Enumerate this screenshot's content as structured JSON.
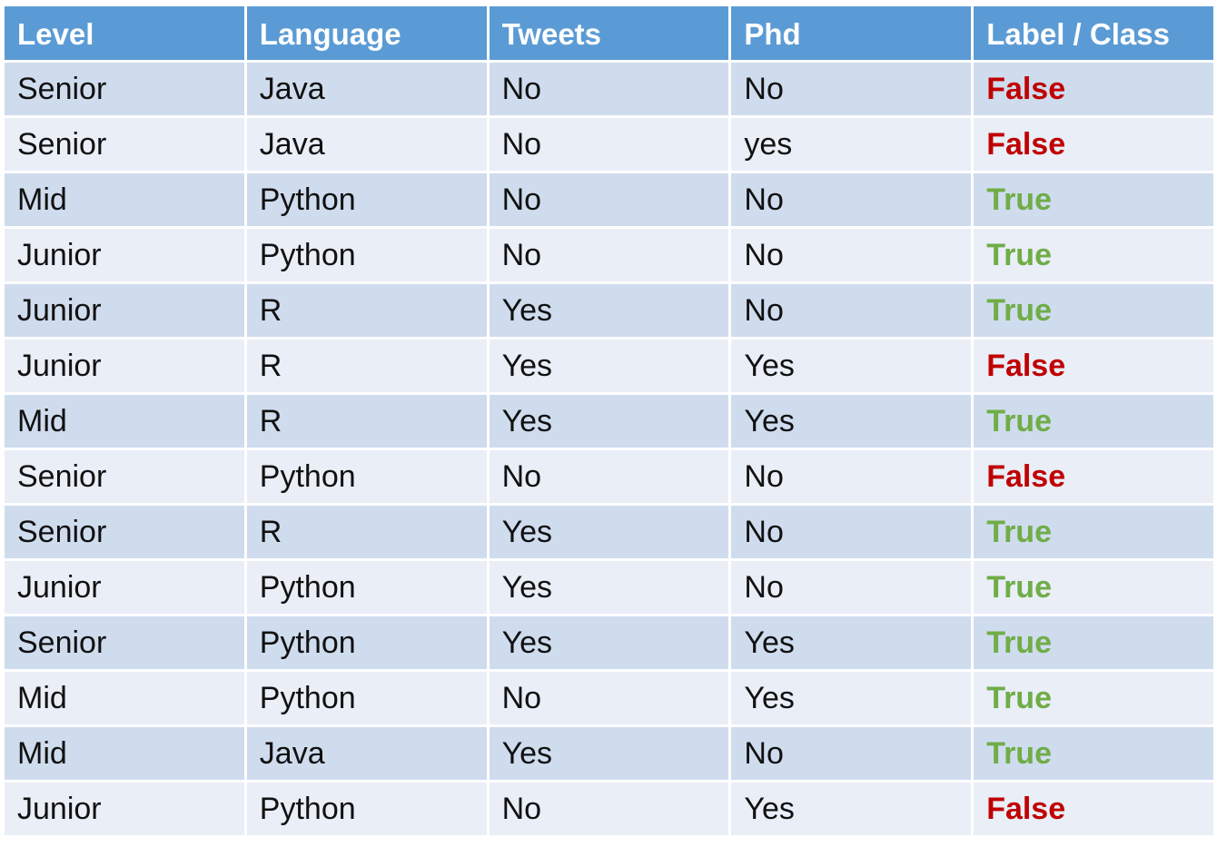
{
  "table": {
    "headers": [
      "Level",
      "Language",
      "Tweets",
      "Phd",
      "Label / Class"
    ],
    "rows": [
      [
        "Senior",
        "Java",
        "No",
        "No",
        "False"
      ],
      [
        "Senior",
        "Java",
        "No",
        "yes",
        "False"
      ],
      [
        "Mid",
        "Python",
        "No",
        "No",
        "True"
      ],
      [
        "Junior",
        "Python",
        "No",
        "No",
        "True"
      ],
      [
        "Junior",
        "R",
        "Yes",
        "No",
        "True"
      ],
      [
        "Junior",
        "R",
        "Yes",
        "Yes",
        "False"
      ],
      [
        "Mid",
        "R",
        "Yes",
        "Yes",
        "True"
      ],
      [
        "Senior",
        "Python",
        "No",
        "No",
        "False"
      ],
      [
        "Senior",
        "R",
        "Yes",
        "No",
        "True"
      ],
      [
        "Junior",
        "Python",
        "Yes",
        "No",
        "True"
      ],
      [
        "Senior",
        "Python",
        "Yes",
        "Yes",
        "True"
      ],
      [
        "Mid",
        "Python",
        "No",
        "Yes",
        "True"
      ],
      [
        "Mid",
        "Java",
        "Yes",
        "No",
        "True"
      ],
      [
        "Junior",
        "Python",
        "No",
        "Yes",
        "False"
      ]
    ]
  },
  "colors": {
    "header_bg": "#5b9bd5",
    "row_dark": "#cfdcee",
    "row_light": "#e9eef7",
    "label_true": "#70ad47",
    "label_false": "#c00000"
  }
}
